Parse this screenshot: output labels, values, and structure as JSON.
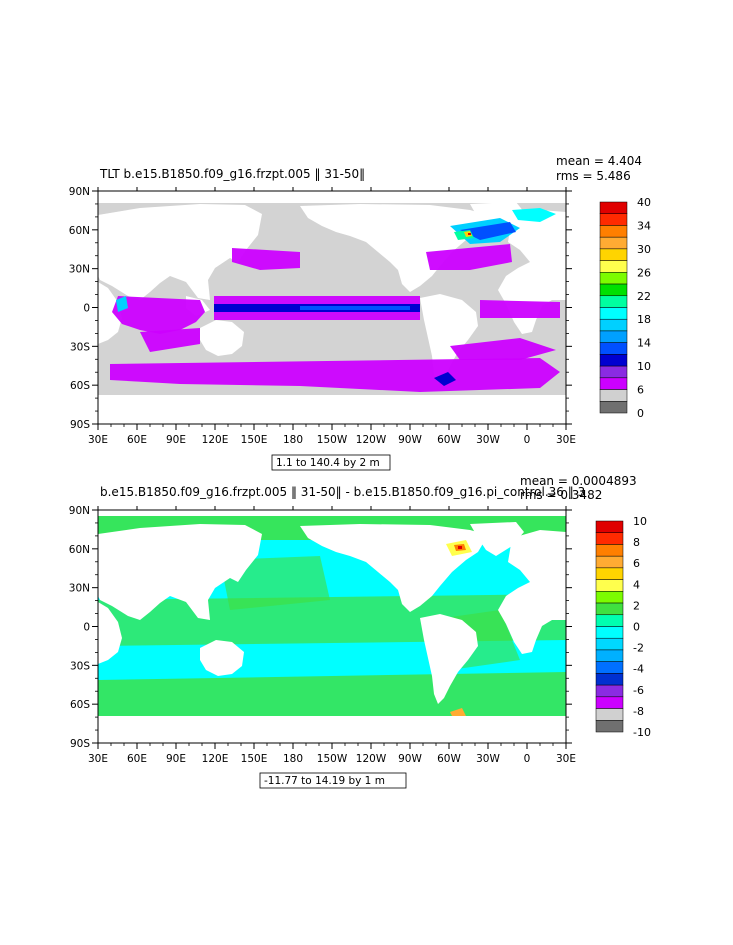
{
  "x_ticks": [
    "30E",
    "60E",
    "90E",
    "120E",
    "150E",
    "180",
    "150W",
    "120W",
    "90W",
    "60W",
    "30W",
    "0",
    "30E"
  ],
  "y_ticks": [
    "90N",
    "60N",
    "30N",
    "0",
    "30S",
    "60S",
    "90S"
  ],
  "panels": [
    {
      "title": "TLT b.e15.B1850.f09_g16.frzpt.005 ‖ 31-50‖",
      "mean": "mean = 4.404",
      "rms": "rms = 5.486",
      "range": "1.1 to 140.4 by 2 m",
      "colorbar_labels": [
        "40",
        "34",
        "30",
        "26",
        "22",
        "18",
        "14",
        "10",
        "6",
        "0"
      ],
      "colorbar_colors": [
        "#e00000",
        "#ff2a00",
        "#ff7f00",
        "#ffab33",
        "#ffd400",
        "#ffff4d",
        "#7cfc00",
        "#00e000",
        "#00ffa0",
        "#00ffff",
        "#00d0ff",
        "#00a0ff",
        "#0050ff",
        "#0000d0",
        "#8a2be2",
        "#cc00ff",
        "#d0d0d0",
        "#707070"
      ]
    },
    {
      "title": "b.e15.B1850.f09_g16.frzpt.005 ‖ 31-50‖ - b.e15.B1850.f09_g16.pi_control.36 ‖ 3",
      "mean": "mean = 0.0004893",
      "rms": "rms = 0.3482",
      "range": "-11.77 to 14.19 by 1 m",
      "colorbar_labels": [
        "10",
        "8",
        "6",
        "4",
        "2",
        "0",
        "-2",
        "-4",
        "-6",
        "-8",
        "-10"
      ],
      "colorbar_colors": [
        "#e00000",
        "#ff2a00",
        "#ff7f00",
        "#ffab33",
        "#ffd400",
        "#ffff4d",
        "#7cfc00",
        "#40e040",
        "#00ffb0",
        "#00ffff",
        "#00d8ff",
        "#00b0ff",
        "#0070ff",
        "#0030d0",
        "#8a2be2",
        "#cc00ff",
        "#d0d0d0",
        "#707070"
      ]
    }
  ]
}
